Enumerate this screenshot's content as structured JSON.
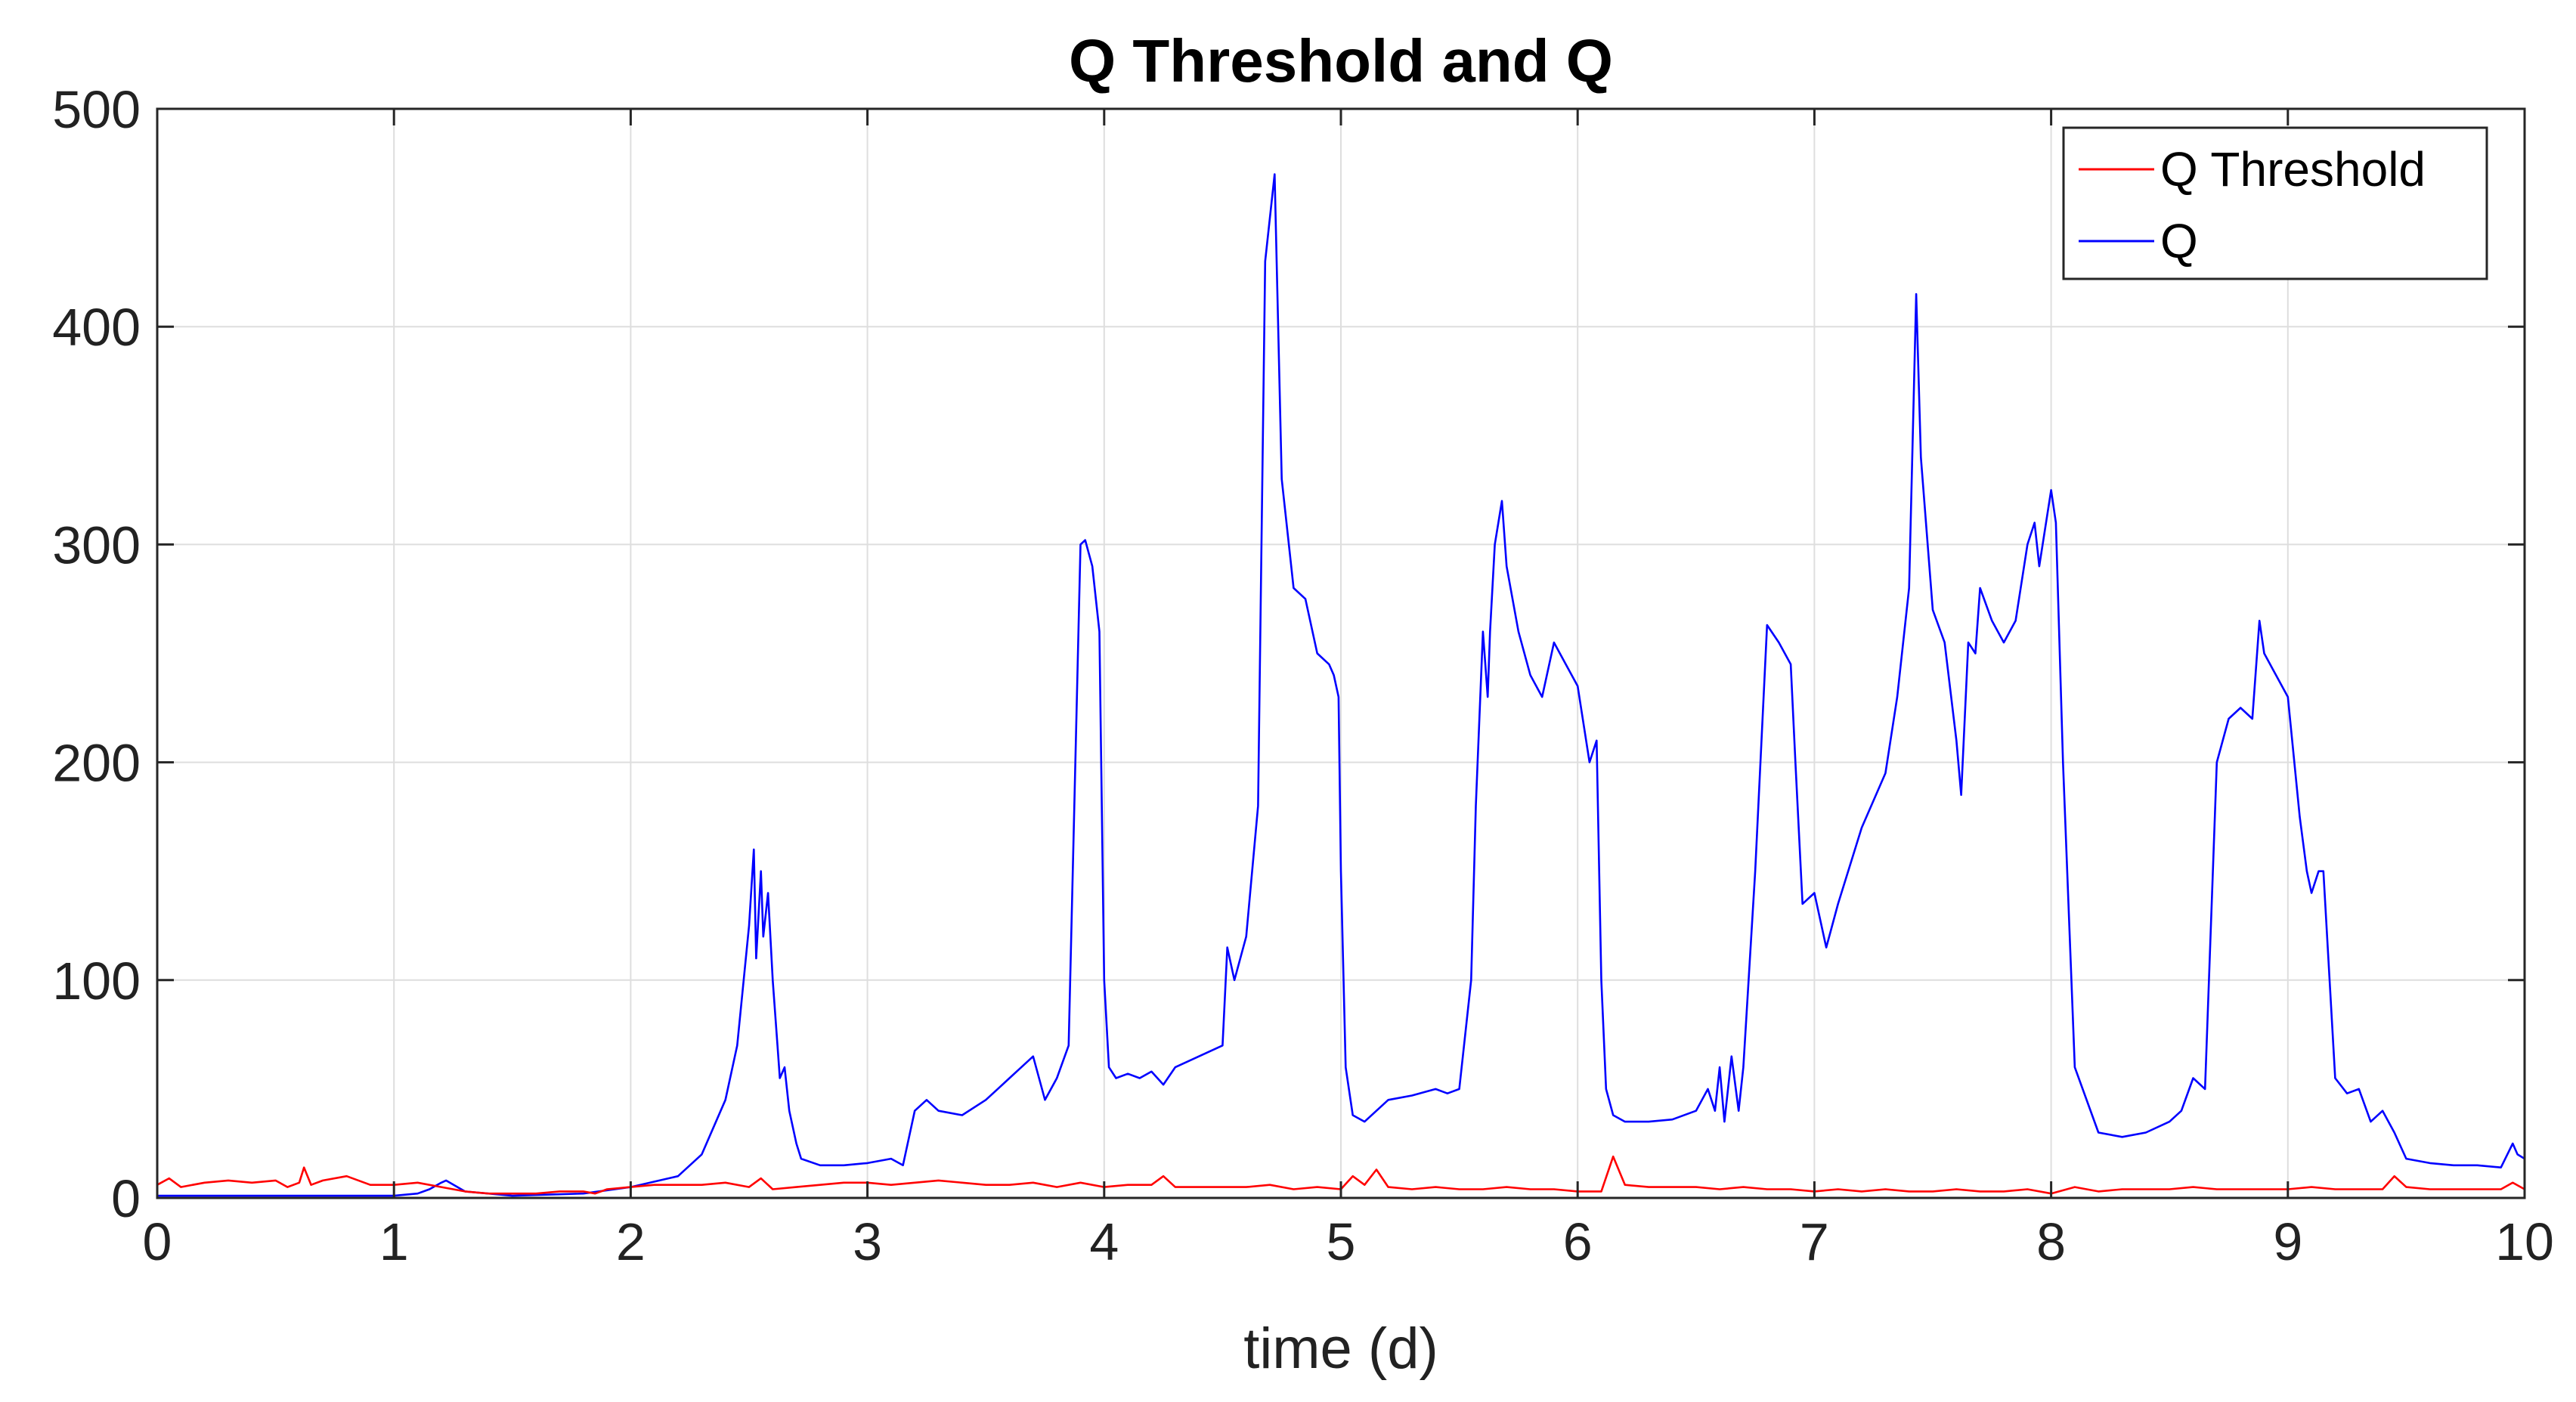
{
  "chart_data": {
    "type": "line",
    "title": "Q Threshold and Q",
    "xlabel": "time (d)",
    "ylabel": "",
    "xlim": [
      0,
      10
    ],
    "ylim": [
      0,
      500
    ],
    "xticks": [
      0,
      1,
      2,
      3,
      4,
      5,
      6,
      7,
      8,
      9,
      10
    ],
    "yticks": [
      0,
      100,
      200,
      300,
      400,
      500
    ],
    "xtick_labels": [
      "0",
      "1",
      "2",
      "3",
      "4",
      "5",
      "6",
      "7",
      "8",
      "9",
      "10"
    ],
    "ytick_labels": [
      "0",
      "100",
      "200",
      "300",
      "400",
      "500"
    ],
    "grid": true,
    "legend_position": "top-right",
    "series": [
      {
        "name": "Q Threshold",
        "color": "#ff0000",
        "x": [
          0,
          0.05,
          0.1,
          0.2,
          0.3,
          0.4,
          0.5,
          0.55,
          0.6,
          0.62,
          0.65,
          0.7,
          0.8,
          0.9,
          1.0,
          1.1,
          1.2,
          1.3,
          1.4,
          1.5,
          1.6,
          1.7,
          1.8,
          1.85,
          1.9,
          2.0,
          2.1,
          2.2,
          2.3,
          2.4,
          2.5,
          2.55,
          2.6,
          2.7,
          2.8,
          2.9,
          3.0,
          3.1,
          3.2,
          3.3,
          3.4,
          3.5,
          3.6,
          3.7,
          3.8,
          3.9,
          4.0,
          4.1,
          4.2,
          4.25,
          4.3,
          4.4,
          4.5,
          4.6,
          4.7,
          4.8,
          4.9,
          5.0,
          5.05,
          5.1,
          5.15,
          5.2,
          5.3,
          5.4,
          5.5,
          5.6,
          5.7,
          5.8,
          5.9,
          6.0,
          6.05,
          6.1,
          6.15,
          6.2,
          6.3,
          6.4,
          6.5,
          6.6,
          6.7,
          6.8,
          6.9,
          7.0,
          7.1,
          7.2,
          7.3,
          7.4,
          7.5,
          7.6,
          7.7,
          7.8,
          7.9,
          8.0,
          8.1,
          8.2,
          8.3,
          8.4,
          8.5,
          8.6,
          8.7,
          8.8,
          8.9,
          9.0,
          9.1,
          9.2,
          9.3,
          9.4,
          9.45,
          9.5,
          9.6,
          9.7,
          9.8,
          9.9,
          9.95,
          10.0
        ],
        "y": [
          6,
          9,
          5,
          7,
          8,
          7,
          8,
          5,
          7,
          14,
          6,
          8,
          10,
          6,
          6,
          7,
          5,
          3,
          2,
          2,
          2,
          3,
          3,
          2,
          4,
          5,
          6,
          6,
          6,
          7,
          5,
          9,
          4,
          5,
          6,
          7,
          7,
          6,
          7,
          8,
          7,
          6,
          6,
          7,
          5,
          7,
          5,
          6,
          6,
          10,
          5,
          5,
          5,
          5,
          6,
          4,
          5,
          4,
          10,
          6,
          13,
          5,
          4,
          5,
          4,
          4,
          5,
          4,
          4,
          3,
          3,
          3,
          19,
          6,
          5,
          5,
          5,
          4,
          5,
          4,
          4,
          3,
          4,
          3,
          4,
          3,
          3,
          4,
          3,
          3,
          4,
          2,
          5,
          3,
          4,
          4,
          4,
          5,
          4,
          4,
          4,
          4,
          5,
          4,
          4,
          4,
          10,
          5,
          4,
          4,
          4,
          4,
          7,
          4
        ]
      },
      {
        "name": "Q",
        "color": "#0000ff",
        "x": [
          0,
          0.5,
          1.0,
          1.1,
          1.15,
          1.2,
          1.22,
          1.3,
          1.5,
          1.8,
          2.0,
          2.2,
          2.3,
          2.4,
          2.45,
          2.5,
          2.52,
          2.53,
          2.55,
          2.56,
          2.58,
          2.6,
          2.62,
          2.63,
          2.65,
          2.67,
          2.7,
          2.72,
          2.8,
          2.9,
          3.0,
          3.1,
          3.15,
          3.2,
          3.25,
          3.3,
          3.4,
          3.5,
          3.55,
          3.6,
          3.65,
          3.7,
          3.75,
          3.8,
          3.85,
          3.9,
          3.92,
          3.95,
          3.98,
          4.0,
          4.02,
          4.05,
          4.1,
          4.15,
          4.2,
          4.25,
          4.3,
          4.4,
          4.5,
          4.52,
          4.55,
          4.6,
          4.65,
          4.68,
          4.72,
          4.75,
          4.8,
          4.85,
          4.9,
          4.95,
          4.97,
          4.99,
          5.0,
          5.02,
          5.05,
          5.1,
          5.2,
          5.3,
          5.4,
          5.45,
          5.5,
          5.55,
          5.57,
          5.6,
          5.62,
          5.63,
          5.65,
          5.68,
          5.7,
          5.75,
          5.8,
          5.85,
          5.9,
          5.95,
          6.0,
          6.05,
          6.08,
          6.1,
          6.12,
          6.15,
          6.2,
          6.3,
          6.4,
          6.5,
          6.55,
          6.58,
          6.6,
          6.62,
          6.65,
          6.68,
          6.7,
          6.75,
          6.8,
          6.85,
          6.9,
          6.92,
          6.95,
          7.0,
          7.05,
          7.1,
          7.2,
          7.3,
          7.35,
          7.4,
          7.43,
          7.45,
          7.5,
          7.55,
          7.6,
          7.62,
          7.65,
          7.68,
          7.7,
          7.75,
          7.8,
          7.85,
          7.9,
          7.93,
          7.95,
          8.0,
          8.02,
          8.05,
          8.1,
          8.2,
          8.3,
          8.4,
          8.5,
          8.55,
          8.6,
          8.65,
          8.7,
          8.75,
          8.8,
          8.85,
          8.88,
          8.9,
          8.95,
          9.0,
          9.05,
          9.08,
          9.1,
          9.13,
          9.15,
          9.2,
          9.25,
          9.3,
          9.35,
          9.4,
          9.45,
          9.5,
          9.6,
          9.7,
          9.8,
          9.9,
          9.95,
          9.97,
          10.0
        ],
        "y": [
          1,
          1,
          1,
          2,
          4,
          7,
          8,
          3,
          1,
          2,
          5,
          10,
          20,
          45,
          70,
          125,
          160,
          110,
          150,
          120,
          140,
          100,
          70,
          55,
          60,
          40,
          25,
          18,
          15,
          15,
          16,
          18,
          15,
          40,
          45,
          40,
          38,
          45,
          50,
          55,
          60,
          65,
          45,
          55,
          70,
          300,
          302,
          290,
          260,
          100,
          60,
          55,
          57,
          55,
          58,
          52,
          60,
          65,
          70,
          115,
          100,
          120,
          180,
          430,
          470,
          330,
          280,
          275,
          250,
          245,
          240,
          230,
          150,
          60,
          38,
          35,
          45,
          47,
          50,
          48,
          50,
          100,
          180,
          260,
          230,
          260,
          300,
          320,
          290,
          260,
          240,
          230,
          255,
          245,
          235,
          200,
          210,
          100,
          50,
          38,
          35,
          35,
          36,
          40,
          50,
          40,
          60,
          35,
          65,
          40,
          60,
          150,
          263,
          255,
          245,
          200,
          135,
          140,
          115,
          135,
          170,
          195,
          230,
          280,
          415,
          340,
          270,
          255,
          210,
          185,
          255,
          250,
          280,
          265,
          255,
          265,
          300,
          310,
          290,
          325,
          310,
          200,
          60,
          30,
          28,
          30,
          35,
          40,
          55,
          50,
          200,
          220,
          225,
          220,
          265,
          250,
          240,
          230,
          175,
          150,
          140,
          150,
          150,
          55,
          48,
          50,
          35,
          40,
          30,
          18,
          16,
          15,
          15,
          14,
          25,
          20,
          18
        ]
      }
    ]
  }
}
